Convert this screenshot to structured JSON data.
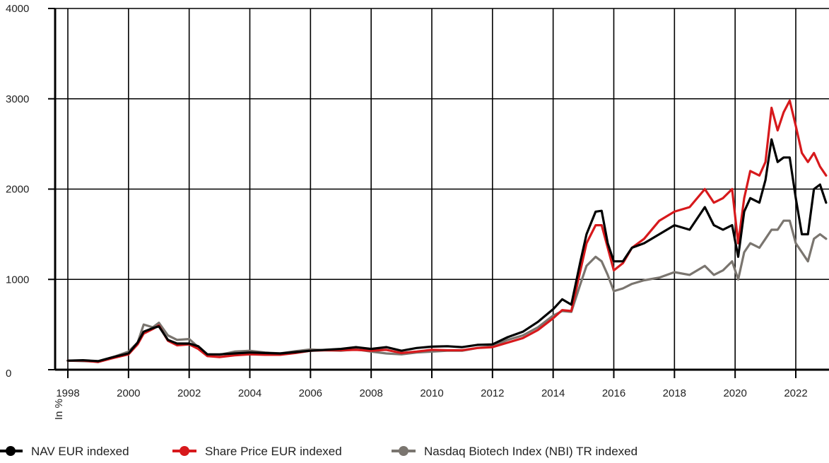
{
  "chart_data": {
    "type": "line",
    "ylabel": "In %",
    "ylim": [
      0,
      4000
    ],
    "yticks": [
      "0",
      "1000",
      "2000",
      "3000",
      "4000"
    ],
    "xticks": [
      "1998",
      "2000",
      "2002",
      "2004",
      "2006",
      "2008",
      "2010",
      "2012",
      "2014",
      "2016",
      "2018",
      "2020",
      "2022"
    ],
    "xlim": [
      1997.8,
      2023.0
    ],
    "grid": true,
    "legend_position": "bottom-left",
    "series": [
      {
        "name": "NAV EUR indexed",
        "color": "#000000",
        "points": [
          [
            1998.0,
            100
          ],
          [
            1998.5,
            105
          ],
          [
            1999.0,
            95
          ],
          [
            1999.5,
            140
          ],
          [
            2000.0,
            180
          ],
          [
            2000.3,
            300
          ],
          [
            2000.5,
            420
          ],
          [
            2000.8,
            460
          ],
          [
            2001.0,
            480
          ],
          [
            2001.3,
            330
          ],
          [
            2001.6,
            290
          ],
          [
            2002.0,
            290
          ],
          [
            2002.3,
            260
          ],
          [
            2002.6,
            170
          ],
          [
            2003.0,
            170
          ],
          [
            2003.5,
            180
          ],
          [
            2004.0,
            190
          ],
          [
            2004.5,
            185
          ],
          [
            2005.0,
            180
          ],
          [
            2005.5,
            195
          ],
          [
            2006.0,
            210
          ],
          [
            2006.5,
            220
          ],
          [
            2007.0,
            230
          ],
          [
            2007.5,
            250
          ],
          [
            2008.0,
            230
          ],
          [
            2008.5,
            250
          ],
          [
            2009.0,
            210
          ],
          [
            2009.5,
            240
          ],
          [
            2010.0,
            255
          ],
          [
            2010.5,
            260
          ],
          [
            2011.0,
            250
          ],
          [
            2011.5,
            275
          ],
          [
            2012.0,
            280
          ],
          [
            2012.5,
            360
          ],
          [
            2013.0,
            420
          ],
          [
            2013.5,
            530
          ],
          [
            2014.0,
            670
          ],
          [
            2014.3,
            780
          ],
          [
            2014.6,
            720
          ],
          [
            2014.9,
            1200
          ],
          [
            2015.1,
            1500
          ],
          [
            2015.4,
            1750
          ],
          [
            2015.6,
            1760
          ],
          [
            2015.8,
            1400
          ],
          [
            2016.0,
            1200
          ],
          [
            2016.3,
            1200
          ],
          [
            2016.6,
            1350
          ],
          [
            2017.0,
            1400
          ],
          [
            2017.5,
            1500
          ],
          [
            2018.0,
            1600
          ],
          [
            2018.5,
            1550
          ],
          [
            2019.0,
            1800
          ],
          [
            2019.3,
            1600
          ],
          [
            2019.6,
            1550
          ],
          [
            2019.9,
            1600
          ],
          [
            2020.1,
            1250
          ],
          [
            2020.3,
            1750
          ],
          [
            2020.5,
            1900
          ],
          [
            2020.8,
            1850
          ],
          [
            2021.0,
            2100
          ],
          [
            2021.2,
            2550
          ],
          [
            2021.4,
            2300
          ],
          [
            2021.6,
            2350
          ],
          [
            2021.8,
            2350
          ],
          [
            2022.0,
            1900
          ],
          [
            2022.2,
            1500
          ],
          [
            2022.4,
            1500
          ],
          [
            2022.6,
            2000
          ],
          [
            2022.8,
            2050
          ],
          [
            2023.0,
            1850
          ]
        ]
      },
      {
        "name": "Share Price EUR indexed",
        "color": "#d7191c",
        "points": [
          [
            1998.0,
            100
          ],
          [
            1998.5,
            100
          ],
          [
            1999.0,
            85
          ],
          [
            1999.5,
            130
          ],
          [
            2000.0,
            170
          ],
          [
            2000.3,
            280
          ],
          [
            2000.5,
            400
          ],
          [
            2000.8,
            450
          ],
          [
            2001.0,
            490
          ],
          [
            2001.3,
            320
          ],
          [
            2001.6,
            270
          ],
          [
            2002.0,
            280
          ],
          [
            2002.3,
            230
          ],
          [
            2002.6,
            150
          ],
          [
            2003.0,
            140
          ],
          [
            2003.5,
            160
          ],
          [
            2004.0,
            170
          ],
          [
            2004.5,
            165
          ],
          [
            2005.0,
            165
          ],
          [
            2005.5,
            185
          ],
          [
            2006.0,
            210
          ],
          [
            2006.5,
            215
          ],
          [
            2007.0,
            215
          ],
          [
            2007.5,
            220
          ],
          [
            2008.0,
            210
          ],
          [
            2008.5,
            220
          ],
          [
            2009.0,
            185
          ],
          [
            2009.5,
            200
          ],
          [
            2010.0,
            220
          ],
          [
            2010.5,
            215
          ],
          [
            2011.0,
            215
          ],
          [
            2011.5,
            240
          ],
          [
            2012.0,
            250
          ],
          [
            2012.5,
            300
          ],
          [
            2013.0,
            350
          ],
          [
            2013.5,
            440
          ],
          [
            2014.0,
            570
          ],
          [
            2014.3,
            660
          ],
          [
            2014.6,
            650
          ],
          [
            2014.9,
            1100
          ],
          [
            2015.1,
            1400
          ],
          [
            2015.4,
            1600
          ],
          [
            2015.6,
            1600
          ],
          [
            2015.8,
            1350
          ],
          [
            2016.0,
            1100
          ],
          [
            2016.3,
            1180
          ],
          [
            2016.6,
            1350
          ],
          [
            2017.0,
            1450
          ],
          [
            2017.5,
            1650
          ],
          [
            2018.0,
            1750
          ],
          [
            2018.5,
            1800
          ],
          [
            2019.0,
            2000
          ],
          [
            2019.3,
            1850
          ],
          [
            2019.6,
            1900
          ],
          [
            2019.9,
            2000
          ],
          [
            2020.1,
            1400
          ],
          [
            2020.3,
            1900
          ],
          [
            2020.5,
            2200
          ],
          [
            2020.8,
            2150
          ],
          [
            2021.0,
            2300
          ],
          [
            2021.2,
            2900
          ],
          [
            2021.4,
            2650
          ],
          [
            2021.6,
            2850
          ],
          [
            2021.8,
            2980
          ],
          [
            2022.0,
            2700
          ],
          [
            2022.2,
            2400
          ],
          [
            2022.4,
            2300
          ],
          [
            2022.6,
            2400
          ],
          [
            2022.8,
            2250
          ],
          [
            2023.0,
            2150
          ]
        ]
      },
      {
        "name": "Nasdaq Biotech Index (NBI) TR indexed",
        "color": "#7a756f",
        "points": [
          [
            1998.0,
            100
          ],
          [
            1998.5,
            95
          ],
          [
            1999.0,
            90
          ],
          [
            1999.5,
            140
          ],
          [
            2000.0,
            200
          ],
          [
            2000.3,
            300
          ],
          [
            2000.5,
            500
          ],
          [
            2000.8,
            470
          ],
          [
            2001.0,
            520
          ],
          [
            2001.3,
            380
          ],
          [
            2001.6,
            330
          ],
          [
            2002.0,
            340
          ],
          [
            2002.3,
            250
          ],
          [
            2002.6,
            170
          ],
          [
            2003.0,
            165
          ],
          [
            2003.5,
            200
          ],
          [
            2004.0,
            210
          ],
          [
            2004.5,
            190
          ],
          [
            2005.0,
            180
          ],
          [
            2005.5,
            205
          ],
          [
            2006.0,
            225
          ],
          [
            2006.5,
            215
          ],
          [
            2007.0,
            210
          ],
          [
            2007.5,
            225
          ],
          [
            2008.0,
            200
          ],
          [
            2008.5,
            180
          ],
          [
            2009.0,
            170
          ],
          [
            2009.5,
            190
          ],
          [
            2010.0,
            200
          ],
          [
            2010.5,
            210
          ],
          [
            2011.0,
            210
          ],
          [
            2011.5,
            240
          ],
          [
            2012.0,
            260
          ],
          [
            2012.5,
            330
          ],
          [
            2013.0,
            380
          ],
          [
            2013.5,
            470
          ],
          [
            2014.0,
            600
          ],
          [
            2014.3,
            650
          ],
          [
            2014.6,
            640
          ],
          [
            2014.9,
            950
          ],
          [
            2015.1,
            1150
          ],
          [
            2015.4,
            1250
          ],
          [
            2015.6,
            1200
          ],
          [
            2015.8,
            1050
          ],
          [
            2016.0,
            870
          ],
          [
            2016.3,
            900
          ],
          [
            2016.6,
            950
          ],
          [
            2017.0,
            990
          ],
          [
            2017.5,
            1020
          ],
          [
            2018.0,
            1080
          ],
          [
            2018.5,
            1050
          ],
          [
            2019.0,
            1150
          ],
          [
            2019.3,
            1050
          ],
          [
            2019.6,
            1100
          ],
          [
            2019.9,
            1200
          ],
          [
            2020.1,
            1000
          ],
          [
            2020.3,
            1300
          ],
          [
            2020.5,
            1400
          ],
          [
            2020.8,
            1350
          ],
          [
            2021.0,
            1450
          ],
          [
            2021.2,
            1550
          ],
          [
            2021.4,
            1550
          ],
          [
            2021.6,
            1650
          ],
          [
            2021.8,
            1650
          ],
          [
            2022.0,
            1400
          ],
          [
            2022.2,
            1300
          ],
          [
            2022.4,
            1200
          ],
          [
            2022.6,
            1450
          ],
          [
            2022.8,
            1500
          ],
          [
            2023.0,
            1450
          ]
        ]
      }
    ]
  }
}
